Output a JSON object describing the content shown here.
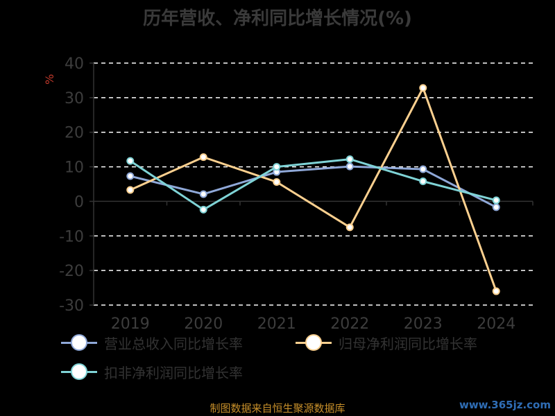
{
  "chart_data": {
    "type": "line",
    "title": "历年营收、净利同比增长情况(%)",
    "ylabel": "%",
    "categories": [
      "2019",
      "2020",
      "2021",
      "2022",
      "2023",
      "2024"
    ],
    "ylim": [
      -30,
      40
    ],
    "yticks": [
      40,
      30,
      20,
      10,
      0,
      -10,
      -20,
      -30
    ],
    "grid": true,
    "legend_position": "bottom",
    "series": [
      {
        "name": "营业总收入同比增长率",
        "color": "#8fa8d8",
        "values": [
          7.3,
          2.1,
          8.5,
          10.1,
          9.3,
          -1.7
        ]
      },
      {
        "name": "归母净利润同比增长率",
        "color": "#fcd08f",
        "values": [
          3.3,
          12.8,
          5.6,
          -7.5,
          32.8,
          -26.0
        ]
      },
      {
        "name": "扣非净利润同比增长率",
        "color": "#7fd3d6",
        "values": [
          11.7,
          -2.4,
          10.0,
          12.2,
          5.8,
          0.3
        ]
      }
    ]
  },
  "source_text": "制图数据来自恒生聚源数据库",
  "watermark_text": "www.365jz.com"
}
